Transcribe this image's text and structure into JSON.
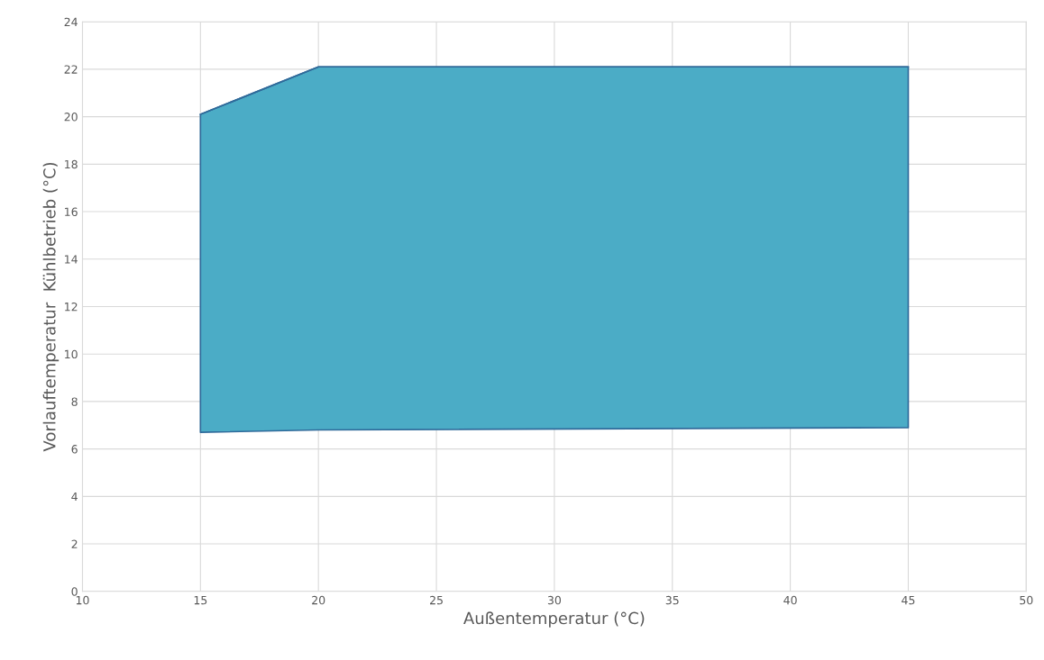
{
  "chart_data": {
    "type": "line",
    "xlabel": "Außentemperatur (°C)",
    "ylabel": "Vorlauftemperatur  Kühlbetrieb (°C)",
    "x": [
      15,
      20,
      45
    ],
    "series": [
      {
        "color": "#2f6a9a",
        "values": [
          20.1,
          22.1,
          22.1
        ],
        "lower": [
          6.7,
          6.8,
          6.9
        ],
        "upper": [
          20.1,
          22.1,
          22.1
        ]
      }
    ],
    "xlim": [
      10,
      50
    ],
    "xticks": [
      10,
      15,
      20,
      25,
      30,
      35,
      40,
      45,
      50
    ],
    "ylim": [
      0,
      24
    ],
    "yticks": [
      0,
      2,
      4,
      6,
      8,
      10,
      12,
      14,
      16,
      18,
      20,
      22,
      24
    ],
    "grid": true,
    "legend": false
  }
}
